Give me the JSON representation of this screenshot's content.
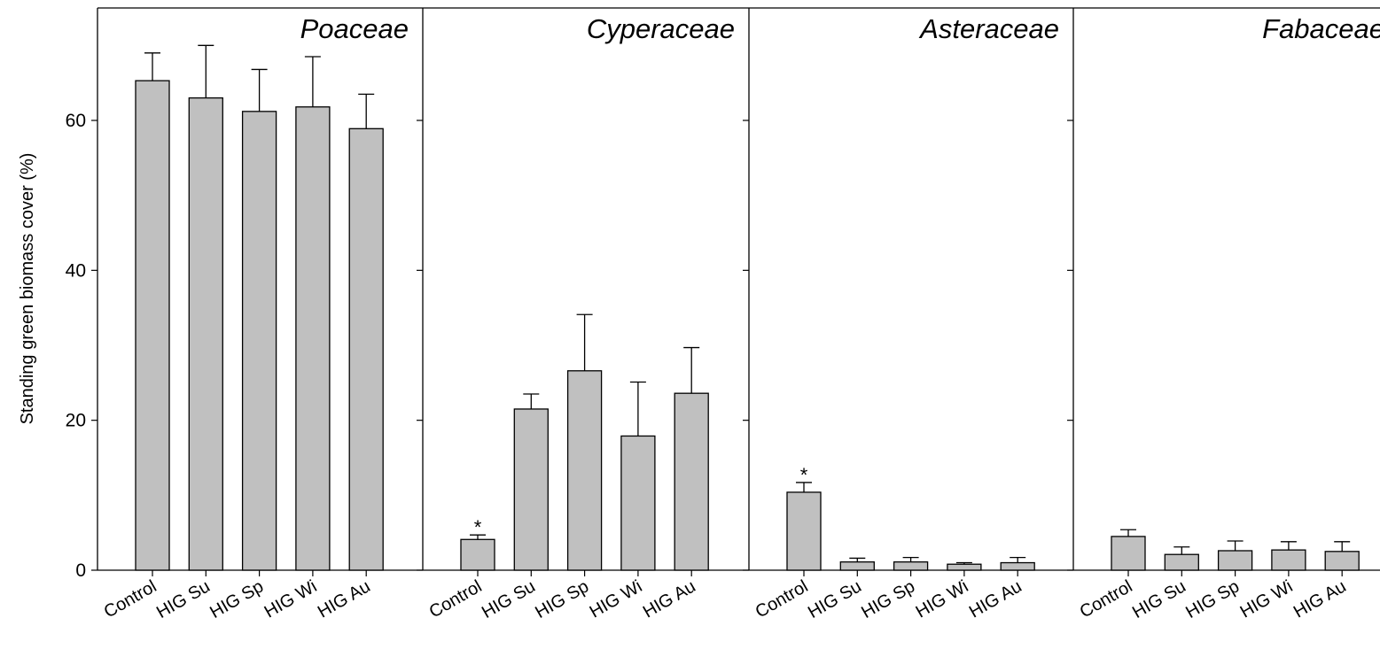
{
  "chart_data": {
    "type": "bar",
    "ylabel": "Standing green biomass cover (%)",
    "xlabel": "",
    "ylim": [
      0,
      75
    ],
    "yticks": [
      0,
      20,
      40,
      60
    ],
    "yticks_labels": [
      "0",
      "20",
      "40",
      "60"
    ],
    "categories": [
      "Control",
      "HIG Su",
      "HIG Sp",
      "HIG Wi",
      "HIG Au"
    ],
    "grid": false,
    "bar_color": "#c0c0c0",
    "significance_marker": "*",
    "panels": [
      {
        "title": "Poaceae",
        "values": [
          65.3,
          63.0,
          61.2,
          61.8,
          58.9
        ],
        "errors": [
          3.7,
          7.0,
          5.6,
          6.7,
          4.6
        ],
        "significance": [
          "",
          "",
          "",
          "",
          ""
        ]
      },
      {
        "title": "Cyperaceae",
        "values": [
          4.1,
          21.5,
          26.6,
          17.9,
          23.6
        ],
        "errors": [
          0.6,
          2.0,
          7.5,
          7.2,
          6.1
        ],
        "significance": [
          "*",
          "",
          "",
          "",
          ""
        ]
      },
      {
        "title": "Asteraceae",
        "values": [
          10.4,
          1.1,
          1.1,
          0.8,
          1.0
        ],
        "errors": [
          1.3,
          0.5,
          0.6,
          0.2,
          0.7
        ],
        "significance": [
          "*",
          "",
          "",
          "",
          ""
        ]
      },
      {
        "title": "Fabaceae",
        "values": [
          4.5,
          2.1,
          2.6,
          2.7,
          2.5
        ],
        "errors": [
          0.9,
          1.0,
          1.3,
          1.1,
          1.3
        ],
        "significance": [
          "",
          "",
          "",
          "",
          ""
        ]
      }
    ]
  }
}
